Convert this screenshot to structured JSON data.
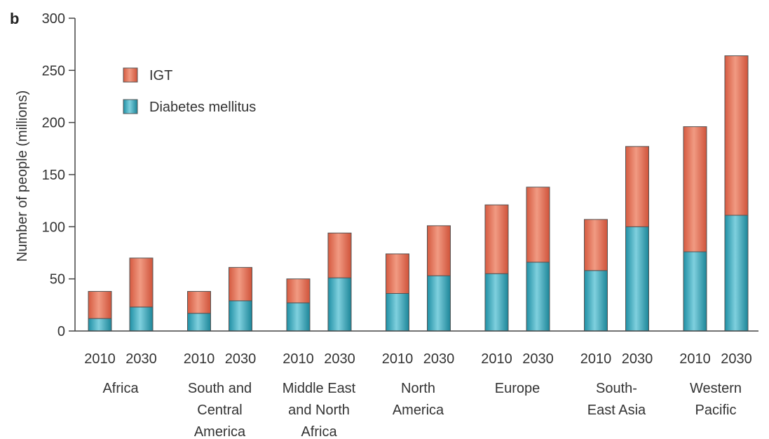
{
  "panel_label": "b",
  "chart_data": {
    "type": "bar",
    "stacked": true,
    "ylabel": "Number of people (millions)",
    "ylim": [
      0,
      300
    ],
    "yticks": [
      0,
      50,
      100,
      150,
      200,
      250,
      300
    ],
    "regions": [
      {
        "label": [
          "Africa"
        ],
        "years": [
          "2010",
          "2030"
        ]
      },
      {
        "label": [
          "South and",
          "Central",
          "America"
        ],
        "years": [
          "2010",
          "2030"
        ]
      },
      {
        "label": [
          "Middle East",
          "and North",
          "Africa"
        ],
        "years": [
          "2010",
          "2030"
        ]
      },
      {
        "label": [
          "North",
          "America"
        ],
        "years": [
          "2010",
          "2030"
        ]
      },
      {
        "label": [
          "Europe"
        ],
        "years": [
          "2010",
          "2030"
        ]
      },
      {
        "label": [
          "South-",
          "East Asia"
        ],
        "years": [
          "2010",
          "2030"
        ]
      },
      {
        "label": [
          "Western",
          "Pacific"
        ],
        "years": [
          "2010",
          "2030"
        ]
      }
    ],
    "series": [
      {
        "name": "Diabetes mellitus",
        "color": "#2aa3b8",
        "values": [
          12,
          23,
          17,
          29,
          27,
          51,
          36,
          53,
          55,
          66,
          58,
          100,
          76,
          111
        ]
      },
      {
        "name": "IGT",
        "color": "#e06a50",
        "values": [
          26,
          47,
          21,
          32,
          23,
          43,
          38,
          48,
          66,
          72,
          49,
          77,
          120,
          153
        ]
      }
    ],
    "legend": {
      "position": "top-left",
      "order": [
        "IGT",
        "Diabetes mellitus"
      ]
    },
    "grid": false
  }
}
